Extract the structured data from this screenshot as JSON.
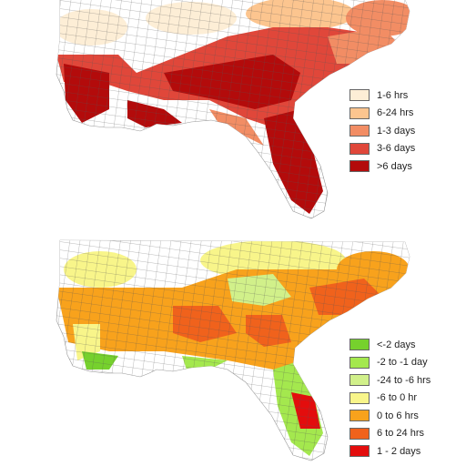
{
  "maps": [
    {
      "legend": [
        {
          "label": "1-6 hrs",
          "color": "#fdeed6"
        },
        {
          "label": "6-24 hrs",
          "color": "#fcc58f"
        },
        {
          "label": "1-3 days",
          "color": "#f28d64"
        },
        {
          "label": "3-6 days",
          "color": "#e0473a"
        },
        {
          "label": ">6 days",
          "color": "#b30b0b"
        }
      ]
    },
    {
      "legend": [
        {
          "label": "<-2 days",
          "color": "#76d12d"
        },
        {
          "label": "-2 to -1 day",
          "color": "#a4e84e"
        },
        {
          "label": "-24 to -6 hrs",
          "color": "#d1f08a"
        },
        {
          "label": "-6 to 0 hr",
          "color": "#f8f58a"
        },
        {
          "label": "0 to 6 hrs",
          "color": "#f8a21c"
        },
        {
          "label": "6 to 24 hrs",
          "color": "#f0621c"
        },
        {
          "label": "1 - 2 days",
          "color": "#e30d0d"
        }
      ]
    }
  ]
}
